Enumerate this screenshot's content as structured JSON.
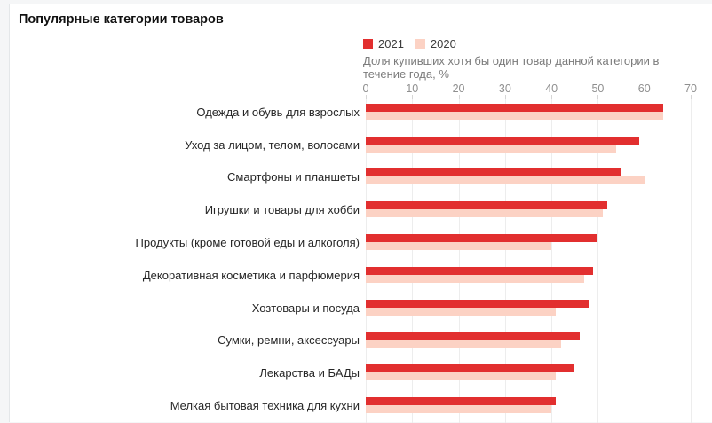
{
  "page": {
    "title": "Популярные категории товаров"
  },
  "chart_data": {
    "type": "bar",
    "orientation": "horizontal",
    "title": "Популярные категории товаров",
    "subtitle": "Доля купивших хотя бы один товар данной категории в течение года, %",
    "legend_position": "top",
    "grid": true,
    "xlim": [
      0,
      70
    ],
    "x_ticks": [
      0,
      10,
      20,
      30,
      40,
      50,
      60,
      70
    ],
    "categories": [
      "Одежда и обувь для взрослых",
      "Уход за лицом, телом, волосами",
      "Смартфоны и планшеты",
      "Игрушки и товары для хобби",
      "Продукты (кроме готовой еды и алкоголя)",
      "Декоративная косметика и парфюмерия",
      "Хозтовары и посуда",
      "Сумки, ремни, аксессуары",
      "Лекарства и БАДы",
      "Мелкая бытовая техника для кухни"
    ],
    "series": [
      {
        "name": "2021",
        "color": "#e22f2f",
        "values": [
          64,
          59,
          55,
          52,
          50,
          49,
          48,
          46,
          45,
          41
        ]
      },
      {
        "name": "2020",
        "color": "#fcd2c4",
        "values": [
          64,
          54,
          60,
          51,
          40,
          47,
          41,
          42,
          41,
          40
        ]
      }
    ],
    "colors": {
      "gridline": "#ededed",
      "tick": "#d6d6d6",
      "axis_text": "#8f8f8f",
      "subtitle_text": "#7b7b7b",
      "category_text": "#262626"
    }
  }
}
